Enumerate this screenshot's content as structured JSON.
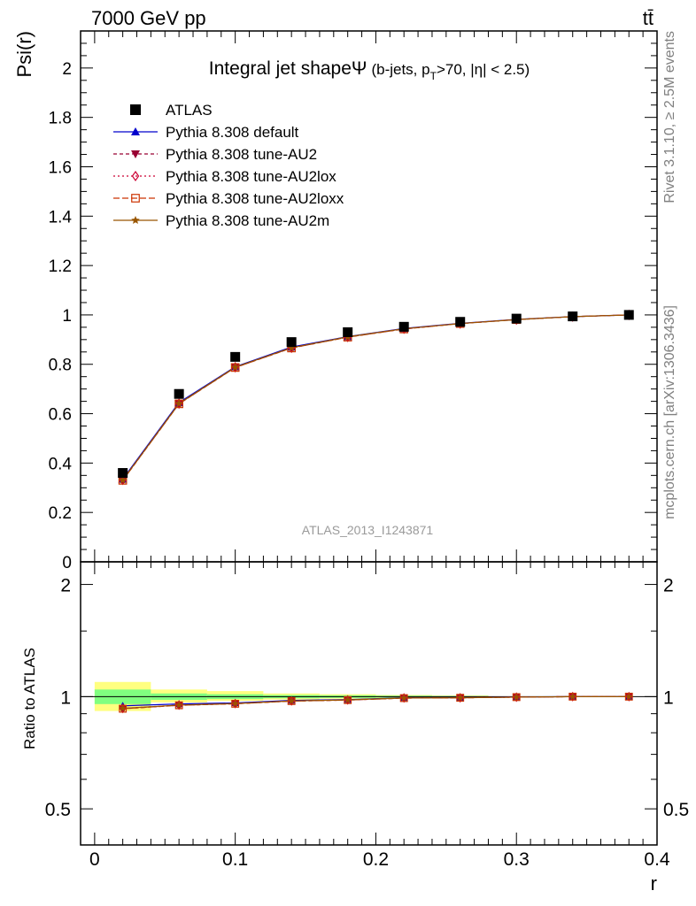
{
  "header": {
    "energy_label": "7000 GeV pp",
    "process_label": "tt̄"
  },
  "side_labels": {
    "rivet": "Rivet 3.1.10, ≥ 2.5M events",
    "mcplots": "mcplots.cern.ch [arXiv:1306.3436]"
  },
  "chart_data": [
    {
      "type": "line",
      "panel": "main",
      "title": "Integral jet shapeΨ",
      "title_suffix": "(b-jets, p",
      "title_sub": "T",
      "title_suffix2": ">70, |η| < 2.5)",
      "ylabel": "Psi(r)",
      "ylim": [
        0,
        2.15
      ],
      "yticks": [
        "0",
        "0.2",
        "0.4",
        "0.6",
        "0.8",
        "1",
        "1.2",
        "1.4",
        "1.6",
        "1.8",
        "2"
      ],
      "xlim": [
        -0.01,
        0.4
      ],
      "analysis_label": "ATLAS_2013_I1243871",
      "data": {
        "name": "ATLAS",
        "x": [
          0.02,
          0.06,
          0.1,
          0.14,
          0.18,
          0.22,
          0.26,
          0.3,
          0.34,
          0.38
        ],
        "y": [
          0.36,
          0.68,
          0.83,
          0.89,
          0.93,
          0.952,
          0.972,
          0.985,
          0.994,
          1.0
        ]
      },
      "series": [
        {
          "name": "Pythia 8.308 default",
          "color": "#0000cc",
          "dash": "",
          "marker": "triangle-up",
          "x": [
            0.02,
            0.06,
            0.1,
            0.14,
            0.18,
            0.22,
            0.26,
            0.3,
            0.34,
            0.38
          ],
          "y": [
            0.335,
            0.645,
            0.79,
            0.87,
            0.912,
            0.945,
            0.966,
            0.982,
            0.993,
            1.0
          ]
        },
        {
          "name": "Pythia 8.308 tune-AU2",
          "color": "#990033",
          "dash": "4,3",
          "marker": "triangle-down",
          "x": [
            0.02,
            0.06,
            0.1,
            0.14,
            0.18,
            0.22,
            0.26,
            0.3,
            0.34,
            0.38
          ],
          "y": [
            0.33,
            0.64,
            0.787,
            0.866,
            0.91,
            0.943,
            0.965,
            0.981,
            0.993,
            1.0
          ]
        },
        {
          "name": "Pythia 8.308 tune-AU2lox",
          "color": "#cc0033",
          "dash": "2,3",
          "marker": "diamond-open",
          "x": [
            0.02,
            0.06,
            0.1,
            0.14,
            0.18,
            0.22,
            0.26,
            0.3,
            0.34,
            0.38
          ],
          "y": [
            0.332,
            0.641,
            0.788,
            0.867,
            0.911,
            0.944,
            0.965,
            0.981,
            0.993,
            1.0
          ]
        },
        {
          "name": "Pythia 8.308 tune-AU2loxx",
          "color": "#cc3300",
          "dash": "7,3",
          "marker": "square-open",
          "x": [
            0.02,
            0.06,
            0.1,
            0.14,
            0.18,
            0.22,
            0.26,
            0.3,
            0.34,
            0.38
          ],
          "y": [
            0.33,
            0.64,
            0.787,
            0.866,
            0.91,
            0.943,
            0.965,
            0.981,
            0.993,
            1.0
          ]
        },
        {
          "name": "Pythia 8.308 tune-AU2m",
          "color": "#995500",
          "dash": "",
          "marker": "star",
          "x": [
            0.02,
            0.06,
            0.1,
            0.14,
            0.18,
            0.22,
            0.26,
            0.3,
            0.34,
            0.38
          ],
          "y": [
            0.331,
            0.641,
            0.788,
            0.867,
            0.911,
            0.944,
            0.965,
            0.981,
            0.993,
            1.0
          ]
        }
      ]
    },
    {
      "type": "line",
      "panel": "ratio",
      "ylabel": "Ratio to ATLAS",
      "xlabel": "r",
      "ylim": [
        0.4,
        2.3
      ],
      "log_scale_y": true,
      "yticks": [
        "0.5",
        "1",
        "2"
      ],
      "xticks": [
        "0",
        "0.1",
        "0.2",
        "0.3",
        "0.4"
      ],
      "xlim": [
        -0.01,
        0.4
      ],
      "bands": [
        {
          "x0": 0.0,
          "x1": 0.04,
          "green": [
            0.955,
            1.045
          ],
          "yellow": [
            0.915,
            1.095
          ]
        },
        {
          "x0": 0.04,
          "x1": 0.08,
          "green": [
            0.98,
            1.02
          ],
          "yellow": [
            0.965,
            1.045
          ]
        },
        {
          "x0": 0.08,
          "x1": 0.12,
          "green": [
            0.985,
            1.015
          ],
          "yellow": [
            0.975,
            1.035
          ]
        },
        {
          "x0": 0.12,
          "x1": 0.16,
          "green": [
            0.99,
            1.01
          ],
          "yellow": [
            0.982,
            1.02
          ]
        },
        {
          "x0": 0.16,
          "x1": 0.2,
          "green": [
            0.992,
            1.008
          ],
          "yellow": [
            0.987,
            1.015
          ]
        },
        {
          "x0": 0.2,
          "x1": 0.24,
          "green": [
            0.994,
            1.006
          ],
          "yellow": [
            0.99,
            1.01
          ]
        },
        {
          "x0": 0.24,
          "x1": 0.28,
          "green": [
            0.996,
            1.004
          ],
          "yellow": [
            0.993,
            1.007
          ]
        }
      ],
      "series": [
        {
          "name": "Pythia 8.308 default",
          "y": [
            0.945,
            0.956,
            0.962,
            0.977,
            0.982,
            0.993,
            0.994,
            0.998,
            1.0,
            1.0
          ]
        },
        {
          "name": "Pythia 8.308 tune-AU2",
          "y": [
            0.928,
            0.948,
            0.957,
            0.973,
            0.979,
            0.991,
            0.993,
            0.997,
            1.0,
            1.0
          ]
        },
        {
          "name": "Pythia 8.308 tune-AU2lox",
          "y": [
            0.93,
            0.949,
            0.958,
            0.974,
            0.98,
            0.992,
            0.993,
            0.997,
            1.0,
            1.0
          ]
        },
        {
          "name": "Pythia 8.308 tune-AU2loxx",
          "y": [
            0.928,
            0.948,
            0.957,
            0.973,
            0.979,
            0.991,
            0.993,
            0.997,
            1.0,
            1.0
          ]
        },
        {
          "name": "Pythia 8.308 tune-AU2m",
          "y": [
            0.93,
            0.949,
            0.958,
            0.974,
            0.98,
            0.992,
            0.993,
            0.997,
            1.0,
            1.0
          ]
        }
      ]
    }
  ]
}
